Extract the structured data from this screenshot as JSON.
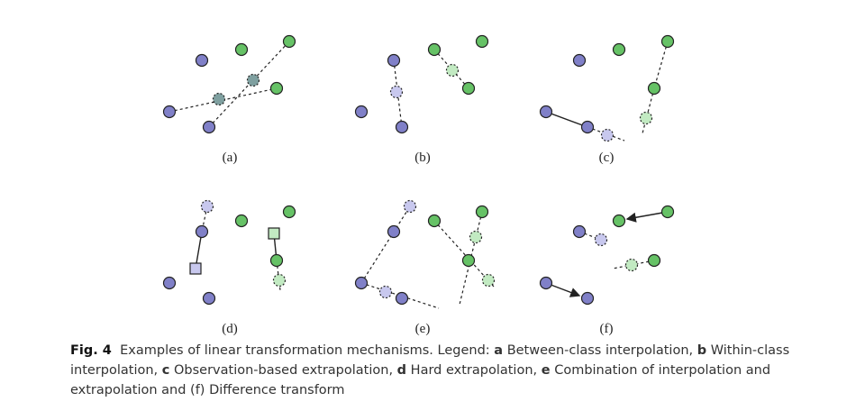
{
  "panels": [
    {
      "label": "(a)"
    },
    {
      "label": "(b)"
    },
    {
      "label": "(c)"
    },
    {
      "label": "(d)"
    },
    {
      "label": "(e)"
    },
    {
      "label": "(f)"
    }
  ],
  "caption": {
    "figure_label": "Fig. 4",
    "intro": "Examples of linear transformation mechanisms. Legend: ",
    "items": [
      {
        "letter": "a",
        "text": "Between-class interpolation, "
      },
      {
        "letter": "b",
        "text": "Within-class interpolation, "
      },
      {
        "letter": "c",
        "text": "Observation-based extrapolation, "
      },
      {
        "letter": "d",
        "text": "Hard extrapolation, "
      },
      {
        "letter": "e",
        "text": "Combination of interpolation and extrapolation and (f) Difference transform"
      }
    ]
  },
  "colors": {
    "class_a_fill": "#8080c8",
    "class_b_fill": "#66c266",
    "class_a_light": "#c8c8ee",
    "class_b_light": "#c2eac2",
    "mixed_fill": "#7fa0a0",
    "stroke": "#222222"
  }
}
